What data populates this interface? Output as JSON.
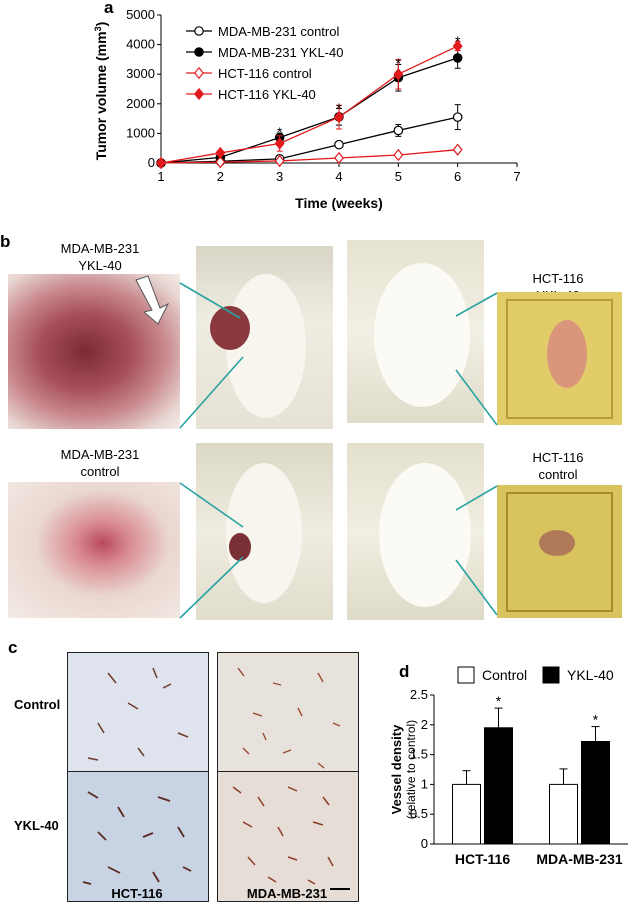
{
  "panels": {
    "a": "a",
    "b": "b",
    "c": "c",
    "d": "d"
  },
  "chart_data": [
    {
      "type": "line",
      "panel": "a",
      "xlabel": "Time (weeks)",
      "ylabel": "Tumor volume (mm",
      "ylabel_sup": "3",
      "ylabel_close": ")",
      "xlim": [
        1,
        7
      ],
      "ylim": [
        0,
        5000
      ],
      "xticks": [
        1,
        2,
        3,
        4,
        5,
        6,
        7
      ],
      "yticks": [
        0,
        1000,
        2000,
        3000,
        4000,
        5000
      ],
      "x": [
        1,
        2,
        3,
        4,
        5,
        6
      ],
      "series": [
        {
          "name": "MDA-MB-231 control",
          "color": "#000000",
          "marker": "open-circle",
          "values": [
            0,
            60,
            140,
            620,
            1100,
            1550
          ],
          "errors": [
            0,
            30,
            50,
            110,
            200,
            420
          ]
        },
        {
          "name": "MDA-MB-231 YKL-40",
          "color": "#000000",
          "marker": "filled-circle",
          "values": [
            0,
            190,
            860,
            1560,
            2880,
            3550
          ],
          "errors": [
            0,
            60,
            150,
            280,
            450,
            350
          ]
        },
        {
          "name": "HCT-116 control",
          "color": "#e31a1c",
          "marker": "open-diamond",
          "values": [
            0,
            30,
            70,
            170,
            270,
            450
          ],
          "errors": [
            0,
            15,
            20,
            30,
            40,
            70
          ]
        },
        {
          "name": "HCT-116 YKL-40",
          "color": "#e31a1c",
          "marker": "filled-diamond",
          "values": [
            0,
            340,
            660,
            1550,
            3000,
            3950
          ],
          "errors": [
            0,
            80,
            260,
            400,
            500,
            150
          ]
        }
      ],
      "annotations": [
        {
          "x": 3,
          "y": 1080,
          "text": "*"
        },
        {
          "x": 4,
          "y": 1900,
          "text": "*"
        },
        {
          "x": 5,
          "y": 3420,
          "text": "*"
        },
        {
          "x": 6,
          "y": 4150,
          "text": "*"
        }
      ]
    },
    {
      "type": "bar",
      "panel": "d",
      "categories": [
        "HCT-116",
        "MDA-MB-231"
      ],
      "ylabel": "Vessel density",
      "ylabel2": "(relative to control)",
      "ylim": [
        0,
        2.5
      ],
      "yticks": [
        0,
        0.5,
        1,
        1.5,
        2,
        2.5
      ],
      "ytick_labels": [
        "0",
        "0.5",
        "1",
        "1.5",
        "2",
        "2.5"
      ],
      "series": [
        {
          "name": "Control",
          "color": "#ffffff",
          "values": [
            1.0,
            1.0
          ],
          "errors": [
            0.23,
            0.26
          ]
        },
        {
          "name": "YKL-40",
          "color": "#000000",
          "values": [
            1.95,
            1.72
          ],
          "errors": [
            0.33,
            0.25
          ]
        }
      ],
      "annotations": [
        {
          "category": 0,
          "series": 1,
          "text": "*"
        },
        {
          "category": 1,
          "series": 1,
          "text": "*"
        }
      ]
    }
  ],
  "panel_b": {
    "labels": {
      "mda_ykl": [
        "MDA-MB-231",
        "YKL-40"
      ],
      "hct_ykl": [
        "HCT-116",
        "YKL-40"
      ],
      "mda_ctrl": [
        "MDA-MB-231",
        "control"
      ],
      "hct_ctrl": [
        "HCT-116",
        "control"
      ]
    }
  },
  "panel_c": {
    "rows": [
      "Control",
      "YKL-40"
    ],
    "columns": [
      "HCT-116",
      "MDA-MB-231"
    ]
  }
}
